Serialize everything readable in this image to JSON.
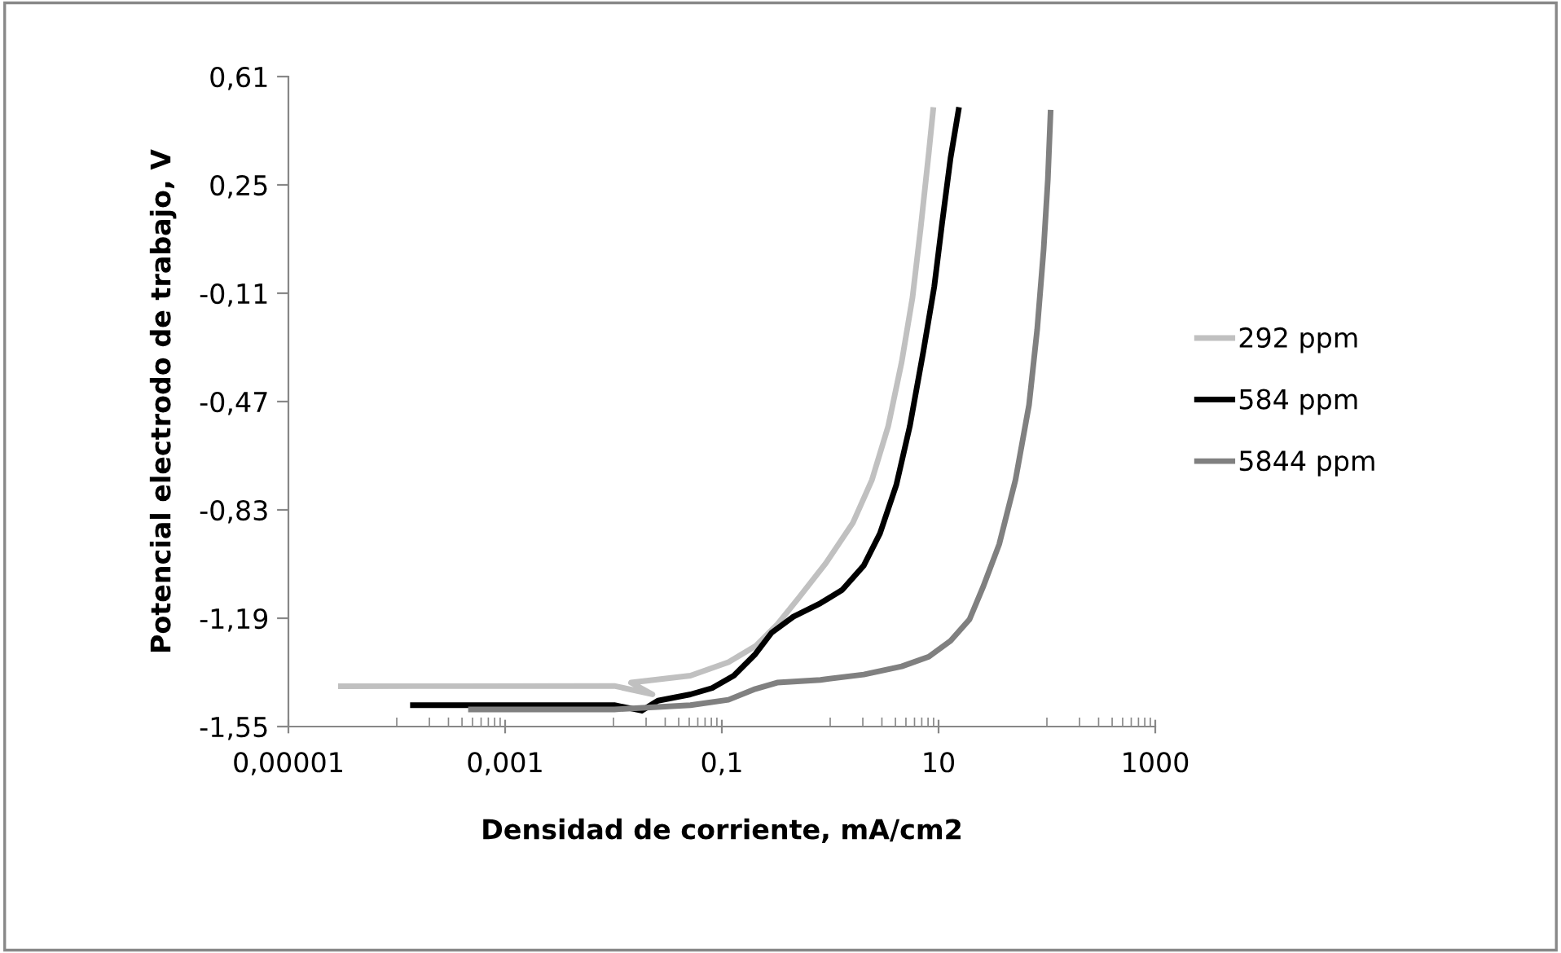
{
  "chart_data": {
    "type": "line",
    "xlabel": "Densidad de corriente, mA/cm2",
    "ylabel": "Potencial electrodo de trabajo, V",
    "log": "x",
    "legend": "right",
    "grid": false,
    "marker": "none",
    "line_style": "solid",
    "xlim": [
      1e-05,
      1000
    ],
    "xticks": [
      {
        "value": 1e-05,
        "label": "0,00001"
      },
      {
        "value": 0.001,
        "label": "0,001"
      },
      {
        "value": 0.1,
        "label": "0,1"
      },
      {
        "value": 10,
        "label": "10"
      },
      {
        "value": 1000,
        "label": "1000"
      }
    ],
    "ylim": [
      -1.55,
      0.61
    ],
    "yticks": [
      {
        "value": -1.55,
        "label": "-1,55"
      },
      {
        "value": -1.19,
        "label": "-1,19"
      },
      {
        "value": -0.83,
        "label": "-0,83"
      },
      {
        "value": -0.47,
        "label": "-0,47"
      },
      {
        "value": -0.11,
        "label": "-0,11"
      },
      {
        "value": 0.25,
        "label": "0,25"
      },
      {
        "value": 0.61,
        "label": "0,61"
      }
    ],
    "series": [
      {
        "name": "292 ppm",
        "color": "#c0c0c0",
        "x": [
          3.05e-05,
          0.0102,
          0.0229,
          0.0145,
          0.0513,
          0.115,
          0.204,
          0.324,
          0.513,
          0.912,
          1.62,
          2.43,
          3.43,
          4.57,
          5.75,
          6.84,
          8.13,
          8.91
        ],
        "values": [
          -1.416,
          -1.415,
          -1.443,
          -1.404,
          -1.381,
          -1.336,
          -1.283,
          -1.211,
          -1.122,
          -1.007,
          -0.873,
          -0.73,
          -0.552,
          -0.338,
          -0.124,
          0.107,
          0.357,
          0.499
        ]
      },
      {
        "name": "584 ppm",
        "color": "#000000",
        "x": [
          0.000141,
          0.0102,
          0.0182,
          0.0257,
          0.0513,
          0.0813,
          0.129,
          0.204,
          0.288,
          0.457,
          0.813,
          1.29,
          2.04,
          2.88,
          4.07,
          5.43,
          7.24,
          9.12,
          10.8,
          12.9,
          15.3
        ],
        "values": [
          -1.479,
          -1.479,
          -1.497,
          -1.464,
          -1.443,
          -1.422,
          -1.381,
          -1.309,
          -1.238,
          -1.185,
          -1.14,
          -1.096,
          -1.015,
          -0.908,
          -0.748,
          -0.552,
          -0.303,
          -0.089,
          0.125,
          0.339,
          0.499
        ]
      },
      {
        "name": "5844 ppm",
        "color": "#808080",
        "x": [
          0.000484,
          0.0102,
          0.0513,
          0.115,
          0.204,
          0.324,
          0.813,
          2.04,
          4.57,
          8.13,
          12.9,
          19.3,
          25.7,
          36.3,
          51.3,
          68.4,
          81.3,
          93.3,
          102,
          108
        ],
        "values": [
          -1.493,
          -1.493,
          -1.479,
          -1.461,
          -1.425,
          -1.404,
          -1.395,
          -1.377,
          -1.35,
          -1.318,
          -1.265,
          -1.194,
          -1.087,
          -0.944,
          -0.73,
          -0.481,
          -0.231,
          0.036,
          0.268,
          0.49
        ]
      }
    ]
  }
}
